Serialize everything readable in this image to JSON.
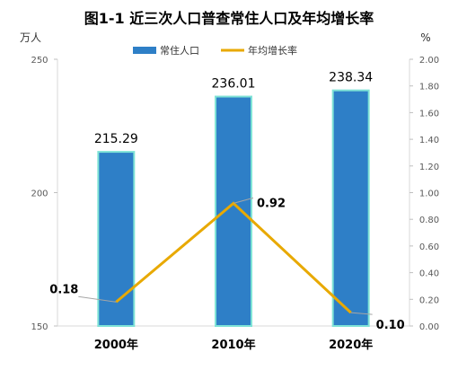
{
  "chart_data": {
    "type": "bar",
    "title": "图1-1  近三次人口普查常住人口及年均增长率",
    "categories": [
      "2000年",
      "2010年",
      "2020年"
    ],
    "series": [
      {
        "name": "常住人口",
        "type": "bar",
        "axis": "left",
        "values": [
          215.29,
          236.01,
          238.34
        ],
        "color": "#2E7FC7",
        "border_color": "#7FE3D6"
      },
      {
        "name": "年均增长率",
        "type": "line",
        "axis": "right",
        "values": [
          0.18,
          0.92,
          0.1
        ],
        "color": "#E8A900"
      }
    ],
    "data_labels": {
      "bars": [
        "215.29",
        "236.01",
        "238.34"
      ],
      "line": [
        "0.18",
        "0.92",
        "0.10"
      ]
    },
    "y_left": {
      "unit": "万人",
      "range": [
        150,
        250
      ],
      "ticks": [
        "150",
        "200",
        "250"
      ]
    },
    "y_right": {
      "unit": "%",
      "range": [
        0,
        2
      ],
      "ticks": [
        "0.00",
        "0.20",
        "0.40",
        "0.60",
        "0.80",
        "1.00",
        "1.20",
        "1.40",
        "1.60",
        "1.80",
        "2.00"
      ]
    },
    "legend_position": "top-center",
    "grid": false
  }
}
